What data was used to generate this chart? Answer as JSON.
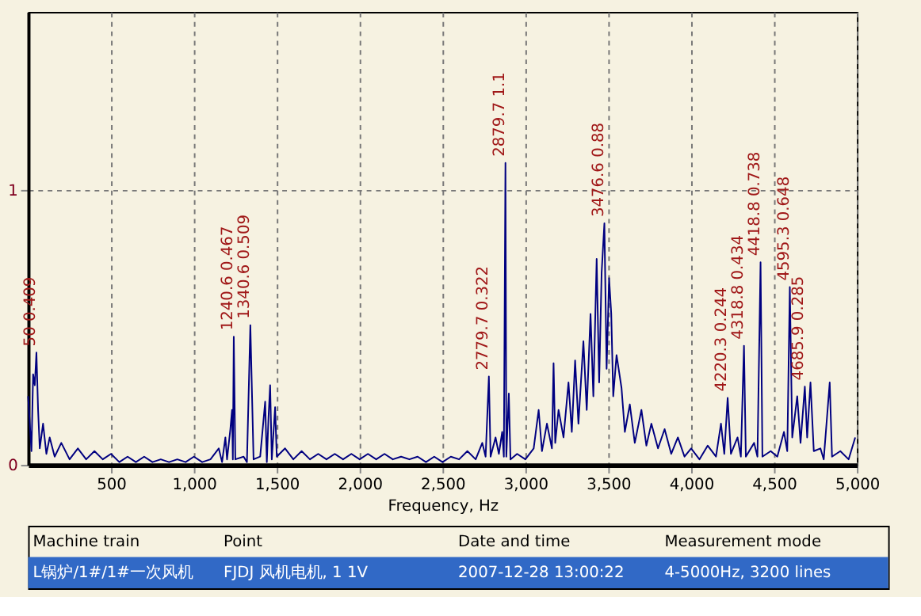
{
  "chart_data": {
    "type": "line",
    "xlabel": "Frequency, Hz",
    "color": "#000080",
    "xlim": [
      0,
      5000
    ],
    "ylim": [
      0,
      1.65
    ],
    "xticks": [
      500,
      {
        "value": 1000,
        "label": "1,000"
      },
      {
        "value": 1500,
        "label": "1,500"
      },
      {
        "value": 2000,
        "label": "2,000"
      },
      {
        "value": 2500,
        "label": "2,500"
      },
      {
        "value": 3000,
        "label": "3,000"
      },
      {
        "value": 3500,
        "label": "3,500"
      },
      {
        "value": 4000,
        "label": "4,000"
      },
      {
        "value": 4500,
        "label": "4,500"
      },
      {
        "value": 5000,
        "label": "5,000"
      }
    ],
    "yticks": [
      0,
      1
    ],
    "grid": true,
    "x": [
      0,
      20,
      30,
      40,
      50,
      60,
      70,
      90,
      110,
      130,
      160,
      200,
      250,
      300,
      350,
      400,
      450,
      500,
      550,
      600,
      650,
      700,
      750,
      800,
      850,
      900,
      950,
      1000,
      1050,
      1100,
      1150,
      1170,
      1190,
      1200,
      1220,
      1230,
      1235,
      1240.6,
      1250,
      1300,
      1320,
      1340.6,
      1360,
      1400,
      1430,
      1440,
      1450,
      1460,
      1470,
      1490,
      1500,
      1550,
      1600,
      1650,
      1700,
      1750,
      1800,
      1850,
      1900,
      1950,
      2000,
      2050,
      2100,
      2150,
      2200,
      2250,
      2300,
      2350,
      2400,
      2450,
      2500,
      2550,
      2600,
      2650,
      2700,
      2740,
      2760,
      2779.7,
      2790,
      2820,
      2840,
      2860,
      2870,
      2879.7,
      2885,
      2900,
      2910,
      2950,
      3000,
      3050,
      3080,
      3100,
      3130,
      3160,
      3170,
      3180,
      3200,
      3230,
      3260,
      3280,
      3300,
      3320,
      3350,
      3370,
      3393,
      3410,
      3430,
      3445,
      3460,
      3476.6,
      3490,
      3505,
      3518,
      3530,
      3550,
      3580,
      3600,
      3630,
      3660,
      3700,
      3730,
      3760,
      3800,
      3840,
      3880,
      3920,
      3960,
      4000,
      4050,
      4100,
      4150,
      4180,
      4200,
      4220.3,
      4240,
      4280,
      4300,
      4318.8,
      4330,
      4380,
      4400,
      4418.8,
      4430,
      4480,
      4520,
      4560,
      4580,
      4595.3,
      4610,
      4640,
      4660,
      4685.9,
      4700,
      4720,
      4740,
      4780,
      4800,
      4836,
      4850,
      4900,
      4950,
      4990
    ],
    "values": [
      0.25,
      0.05,
      0.33,
      0.29,
      0.409,
      0.2,
      0.06,
      0.15,
      0.04,
      0.1,
      0.03,
      0.08,
      0.02,
      0.06,
      0.02,
      0.05,
      0.02,
      0.04,
      0.01,
      0.03,
      0.01,
      0.03,
      0.01,
      0.02,
      0.01,
      0.02,
      0.01,
      0.03,
      0.01,
      0.02,
      0.06,
      0.01,
      0.1,
      0.02,
      0.13,
      0.2,
      0.02,
      0.467,
      0.02,
      0.03,
      0.01,
      0.509,
      0.02,
      0.03,
      0.23,
      0.01,
      0.17,
      0.29,
      0.02,
      0.21,
      0.03,
      0.06,
      0.02,
      0.05,
      0.02,
      0.04,
      0.02,
      0.04,
      0.02,
      0.04,
      0.02,
      0.04,
      0.02,
      0.04,
      0.02,
      0.03,
      0.02,
      0.03,
      0.01,
      0.03,
      0.01,
      0.03,
      0.02,
      0.05,
      0.02,
      0.08,
      0.03,
      0.322,
      0.03,
      0.1,
      0.04,
      0.12,
      0.03,
      1.1,
      0.03,
      0.26,
      0.02,
      0.04,
      0.02,
      0.06,
      0.2,
      0.05,
      0.15,
      0.06,
      0.37,
      0.08,
      0.2,
      0.1,
      0.3,
      0.12,
      0.38,
      0.15,
      0.45,
      0.2,
      0.55,
      0.25,
      0.75,
      0.3,
      0.7,
      0.88,
      0.35,
      0.68,
      0.55,
      0.25,
      0.4,
      0.28,
      0.12,
      0.22,
      0.08,
      0.2,
      0.07,
      0.15,
      0.06,
      0.13,
      0.04,
      0.1,
      0.03,
      0.06,
      0.02,
      0.07,
      0.03,
      0.15,
      0.04,
      0.244,
      0.04,
      0.1,
      0.03,
      0.434,
      0.03,
      0.08,
      0.03,
      0.738,
      0.03,
      0.05,
      0.03,
      0.12,
      0.05,
      0.648,
      0.1,
      0.25,
      0.08,
      0.285,
      0.1,
      0.3,
      0.05,
      0.06,
      0.02,
      0.3,
      0.03,
      0.05,
      0.02,
      0.1
    ],
    "annotations": [
      {
        "text": "50  0.409",
        "x": 50,
        "y": 0.409
      },
      {
        "text": "1240.6  0.467",
        "x": 1240.6,
        "y": 0.467
      },
      {
        "text": "1340.6  0.509",
        "x": 1340.6,
        "y": 0.509
      },
      {
        "text": "2779.7  0.322",
        "x": 2779.7,
        "y": 0.322
      },
      {
        "text": "2879.7  1.1",
        "x": 2879.7,
        "y": 1.1
      },
      {
        "text": "3476.6  0.88",
        "x": 3476.6,
        "y": 0.88
      },
      {
        "text": "4220.3  0.244",
        "x": 4220.3,
        "y": 0.244
      },
      {
        "text": "4318.8  0.434",
        "x": 4318.8,
        "y": 0.434
      },
      {
        "text": "4418.8  0.738",
        "x": 4418.8,
        "y": 0.738
      },
      {
        "text": "4595.3  0.648",
        "x": 4595.3,
        "y": 0.648
      },
      {
        "text": "4685.9  0.285",
        "x": 4685.9,
        "y": 0.285
      },
      "Machine train",
      "Point",
      "Date and time",
      "Measurement mode",
      "L锅炉/1#/1#一次风机",
      "FJDJ 风机电机, 1 1V",
      "2007-12-28 13:00:22",
      "4-5000Hz, 3200 lines"
    ]
  }
}
